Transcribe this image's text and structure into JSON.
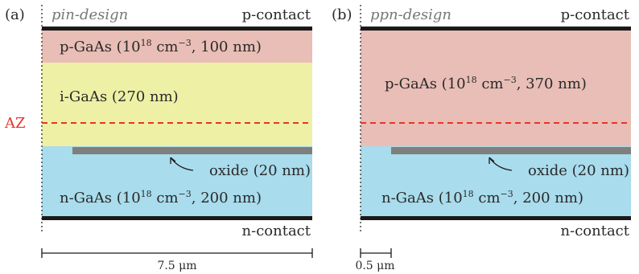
{
  "panel_a": {
    "tag": "(a)",
    "design": "pin-design",
    "top_contact": "p-contact",
    "bottom_contact": "n-contact",
    "layer_p": {
      "prefix": "p-GaAs (10",
      "sup": "18",
      "unit": " cm",
      "sup2": "−3",
      "suffix": ", 100 nm)"
    },
    "layer_i": "i-GaAs (270 nm)",
    "oxide": "oxide (20 nm)",
    "layer_n": {
      "prefix": "n-GaAs (10",
      "sup": "18",
      "unit": " cm",
      "sup2": "−3",
      "suffix": ", 200 nm)"
    },
    "az": "AZ",
    "scale": "7.5 μm"
  },
  "panel_b": {
    "tag": "(b)",
    "design": "ppn-design",
    "top_contact": "p-contact",
    "bottom_contact": "n-contact",
    "layer_p": {
      "prefix": "p-GaAs (10",
      "sup": "18",
      "unit": " cm",
      "sup2": "−3",
      "suffix": ", 370 nm)"
    },
    "oxide": "oxide (20 nm)",
    "layer_n": {
      "prefix": "n-GaAs (10",
      "sup": "18",
      "unit": " cm",
      "sup2": "−3",
      "suffix": ", 200 nm)"
    },
    "scale": "0.5 μm"
  },
  "colors": {
    "p_layer": "#e8beb6",
    "i_layer": "#eef0a6",
    "n_layer": "#a9dcec",
    "oxide": "#7f7f7f",
    "contact": "#1a1a1a",
    "az_line": "#e8332a"
  }
}
